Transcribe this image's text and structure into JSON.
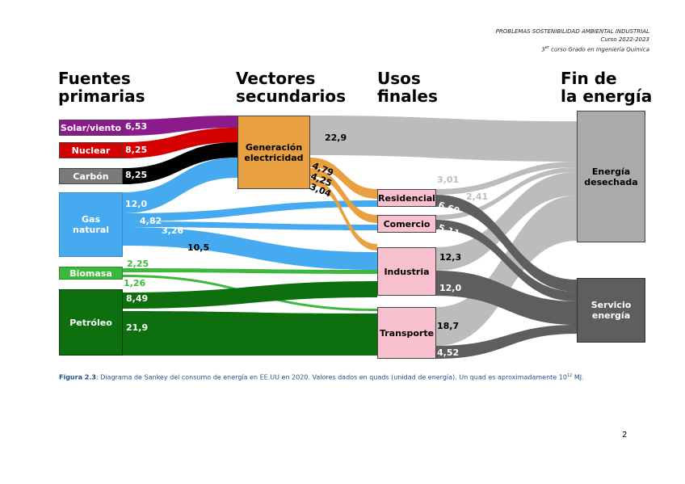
{
  "header": {
    "line1": "PROBLEMAS SOSTENIBILIDAD AMBIENTAL INDUSTRIAL",
    "line2": "Curso 2022-2023",
    "line3_pre": "3",
    "line3_sup": "er",
    "line3_post": " curso Grado en Ingeniería Química"
  },
  "columns": {
    "sources_1": "Fuentes",
    "sources_2": "primarias",
    "secondary_1": "Vectores",
    "secondary_2": "secundarios",
    "uses_1": "Usos",
    "uses_2": "finales",
    "end_1": "Fin de",
    "end_2": "la energía"
  },
  "nodes": {
    "solar": "Solar/viento",
    "nuclear": "Nuclear",
    "carbon": "Carbón",
    "gas_1": "Gas",
    "gas_2": "natural",
    "biomasa": "Biomasa",
    "petroleo": "Petróleo",
    "gen_1": "Generación",
    "gen_2": "electricidad",
    "residencial": "Residencial",
    "comercio": "Comercio",
    "industria": "Industria",
    "transporte": "Transporte",
    "desechada_1": "Energía",
    "desechada_2": "desechada",
    "servicio_1": "Servicio",
    "servicio_2": "energía"
  },
  "flow_labels": {
    "solar": "6,53",
    "nuclear": "8,25",
    "carbon": "8,25",
    "gas_gen": "12,0",
    "gas_res": "4,82",
    "gas_com": "3,26",
    "gas_ind": "10,5",
    "bio_ind": "2,25",
    "bio_tra": "1,26",
    "pet_ind": "8,49",
    "pet_tra": "21,9",
    "gen_waste": "22,9",
    "gen_res": "4,79",
    "gen_com": "4,25",
    "gen_ind": "3,04",
    "res_waste": "3,01",
    "com_waste": "2,41",
    "res_serv": "6,60",
    "com_serv": "5,11",
    "ind_waste": "12,3",
    "ind_serv": "12,0",
    "tra_waste": "18,7",
    "tra_serv": "4,52"
  },
  "caption": {
    "fig": "Figura 2.3",
    "text": ": Diagrama de Sankey del consumo de energía en EE.UU en 2020. Valores dados en quads (unidad de energía). Un quad es aproximadamente 10",
    "sup": "12",
    "text2": " MJ."
  },
  "page_number": "2",
  "colors": {
    "solar": "#8b1a8b",
    "nuclear": "#d40000",
    "carbon": "#000000",
    "gas": "#45aaf0",
    "biomasa": "#3cb93c",
    "petroleo": "#0d6f0d",
    "gen": "#e8a040",
    "uses": "#f9c0cf",
    "waste": "#bcbcbc",
    "service": "#5e5e5e",
    "caption": "#1f4e8c"
  }
}
